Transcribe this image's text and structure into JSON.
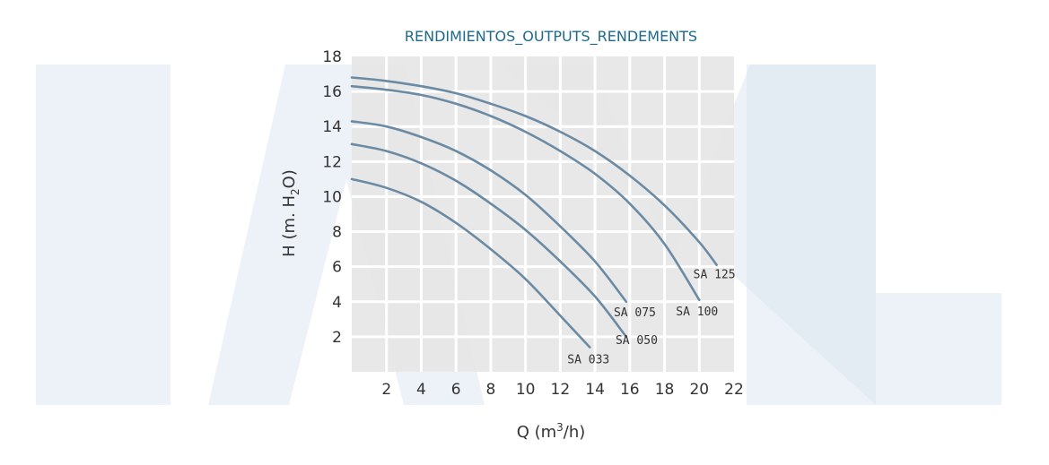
{
  "chart_data": {
    "type": "line",
    "title": "RENDIMIENTOS_OUTPUTS_RENDEMENTS",
    "xlabel": "Q (m",
    "xlabel_sup": "3",
    "xlabel_end": "/h)",
    "ylabel": "H (m. H",
    "ylabel_sub": "2",
    "ylabel_end": "O)",
    "xlim": [
      0,
      22
    ],
    "ylim": [
      0,
      18
    ],
    "x_ticks": [
      "2",
      "4",
      "6",
      "8",
      "10",
      "12",
      "14",
      "16",
      "18",
      "20",
      "22"
    ],
    "y_ticks": [
      "2",
      "4",
      "6",
      "8",
      "10",
      "12",
      "14",
      "16",
      "18"
    ],
    "grid": true,
    "series": [
      {
        "name": "SA 033",
        "x": [
          0,
          2,
          4,
          6,
          8,
          10,
          12,
          13.7
        ],
        "y": [
          11.0,
          10.5,
          9.7,
          8.5,
          7.0,
          5.3,
          3.2,
          1.4
        ]
      },
      {
        "name": "SA 050",
        "x": [
          0,
          2,
          4,
          6,
          8,
          10,
          12,
          14,
          15.8
        ],
        "y": [
          13.0,
          12.6,
          11.9,
          10.9,
          9.6,
          8.1,
          6.3,
          4.3,
          2.0
        ]
      },
      {
        "name": "SA 075",
        "x": [
          0,
          2,
          4,
          6,
          8,
          10,
          12,
          14,
          15.8
        ],
        "y": [
          14.3,
          14.0,
          13.4,
          12.6,
          11.5,
          10.1,
          8.3,
          6.3,
          4.0
        ]
      },
      {
        "name": "SA 100",
        "x": [
          0,
          2,
          4,
          6,
          8,
          10,
          12,
          14,
          16,
          18,
          20
        ],
        "y": [
          16.3,
          16.1,
          15.8,
          15.3,
          14.6,
          13.7,
          12.6,
          11.3,
          9.6,
          7.3,
          4.1
        ]
      },
      {
        "name": "SA 125",
        "x": [
          0,
          2,
          4,
          6,
          8,
          10,
          12,
          14,
          16,
          18,
          20,
          21
        ],
        "y": [
          16.8,
          16.6,
          16.3,
          15.9,
          15.3,
          14.6,
          13.7,
          12.6,
          11.2,
          9.5,
          7.4,
          6.1
        ]
      }
    ],
    "colors": {
      "curve": "#6b8aa3",
      "plot_bg": "#e6e6e6",
      "grid": "#ffffff",
      "title": "#1e6a8a",
      "watermark": "#dde7f0"
    }
  }
}
